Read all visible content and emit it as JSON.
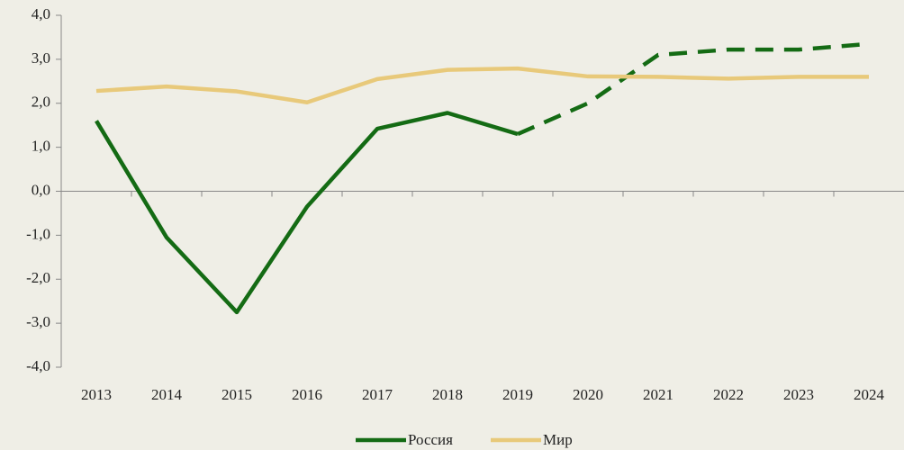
{
  "chart_data": {
    "type": "line",
    "categories": [
      "2013",
      "2014",
      "2015",
      "2016",
      "2017",
      "2018",
      "2019",
      "2020",
      "2021",
      "2022",
      "2023",
      "2024"
    ],
    "series": [
      {
        "name": "Россия",
        "color": "#146b14",
        "dashed_from": "2019",
        "values": [
          1.6,
          -1.05,
          -2.75,
          -0.35,
          1.42,
          1.78,
          1.3,
          2.0,
          3.1,
          3.22,
          3.22,
          3.35
        ]
      },
      {
        "name": "Мир",
        "color": "#e8c97a",
        "values": [
          2.28,
          2.38,
          2.27,
          2.02,
          2.55,
          2.76,
          2.79,
          2.61,
          2.6,
          2.56,
          2.6,
          2.6
        ]
      }
    ],
    "ylim": [
      -4,
      4
    ],
    "yticks": [
      {
        "value": -4,
        "label": "-4,0"
      },
      {
        "value": -3,
        "label": "-3,0"
      },
      {
        "value": -2,
        "label": "-2,0"
      },
      {
        "value": -1,
        "label": "-1,0"
      },
      {
        "value": 0,
        "label": "0,0"
      },
      {
        "value": 1,
        "label": "1,0"
      },
      {
        "value": 2,
        "label": "2,0"
      },
      {
        "value": 3,
        "label": "3,0"
      },
      {
        "value": 4,
        "label": "4,0"
      }
    ],
    "grid": false,
    "legend": "bottom"
  }
}
